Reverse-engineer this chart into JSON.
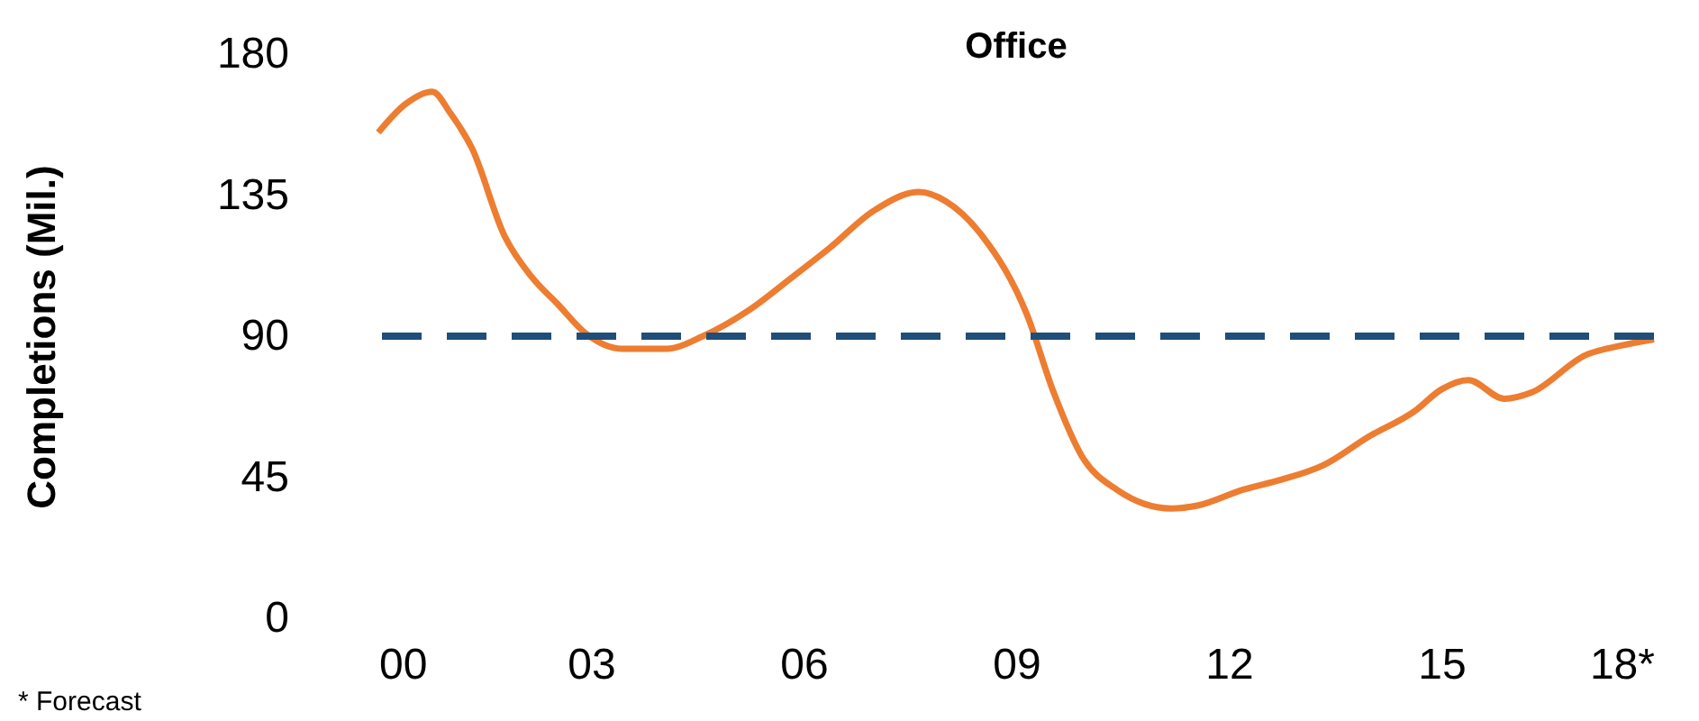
{
  "chart_data": {
    "type": "line",
    "title": "Office",
    "ylabel": "Completions (Mil.)",
    "x": [
      0,
      0.38,
      0.76,
      1.02,
      1.32,
      1.78,
      2.16,
      2.54,
      2.92,
      3.43,
      4.07,
      4.58,
      5.21,
      5.85,
      6.36,
      6.99,
      7.63,
      8.01,
      8.52,
      9.15,
      9.53,
      9.92,
      10.42,
      11.19,
      11.57,
      12.2,
      12.71,
      13.35,
      13.98,
      14.62,
      15.0,
      15.38,
      15.89,
      16.27,
      17.04,
      17.54,
      18
    ],
    "series": [
      {
        "color": "#ed7d31",
        "values": [
          155,
          164,
          168,
          161,
          150,
          122,
          109,
          100,
          91,
          86,
          86,
          90,
          98,
          109,
          118,
          130,
          136,
          133,
          122,
          97,
          72,
          52,
          41,
          35,
          36,
          41,
          44,
          49,
          58,
          66,
          73,
          76,
          70,
          72,
          84,
          87,
          89
        ]
      }
    ],
    "xlim": [
      0,
      18
    ],
    "xticks": [
      {
        "value": 0,
        "label": "00"
      },
      {
        "value": 3,
        "label": "03"
      },
      {
        "value": 6,
        "label": "06"
      },
      {
        "value": 9,
        "label": "09"
      },
      {
        "value": 12,
        "label": "12"
      },
      {
        "value": 15,
        "label": "15"
      },
      {
        "value": 18,
        "label": "18*"
      }
    ],
    "ylim": [
      0,
      180
    ],
    "yticks": [
      0,
      45,
      90,
      135,
      180
    ],
    "ref_lines": [
      {
        "axis": "y",
        "value": 90,
        "color": "#1f4e79",
        "line_style": "dashed"
      }
    ],
    "annotations": [
      "* Forecast"
    ],
    "grid": false,
    "marker": "none",
    "line_style": "solid"
  }
}
